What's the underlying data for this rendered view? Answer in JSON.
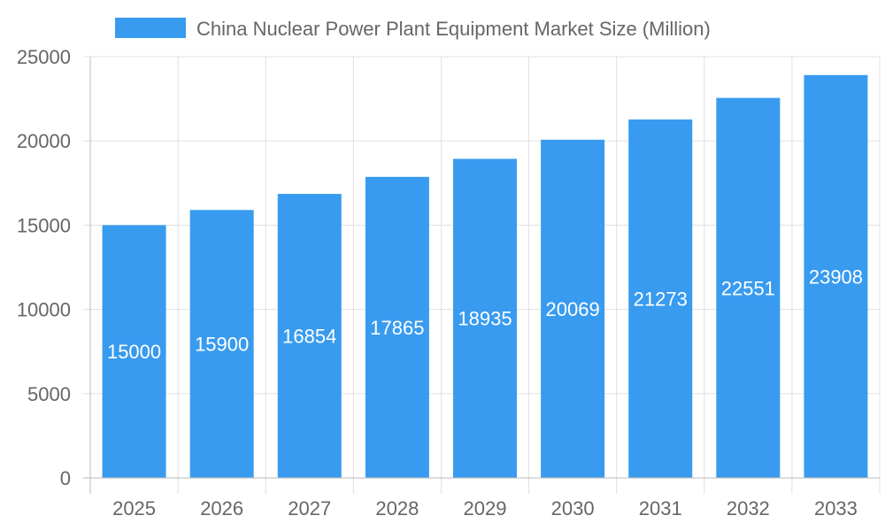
{
  "chart_data": {
    "type": "bar",
    "title": "",
    "xlabel": "",
    "ylabel": "",
    "categories": [
      "2025",
      "2026",
      "2027",
      "2028",
      "2029",
      "2030",
      "2031",
      "2032",
      "2033"
    ],
    "series": [
      {
        "name": "China Nuclear Power Plant Equipment Market Size (Million)",
        "values": [
          15000,
          15900,
          16854,
          17865,
          18935,
          20069,
          21273,
          22551,
          23908
        ],
        "color": "#389bef"
      }
    ],
    "ylim": [
      0,
      25000
    ],
    "yticks": [
      0,
      5000,
      10000,
      15000,
      20000,
      25000
    ],
    "grid": true,
    "legend_position": "top",
    "data_labels": true,
    "data_label_color": "#ffffff"
  }
}
